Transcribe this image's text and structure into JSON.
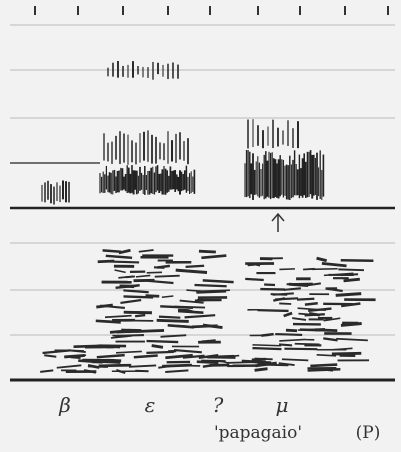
{
  "labels": {
    "segments": [
      "β",
      "ε",
      "?",
      "μ"
    ],
    "word": "'papagaio'",
    "speaker": "(P)"
  }
}
